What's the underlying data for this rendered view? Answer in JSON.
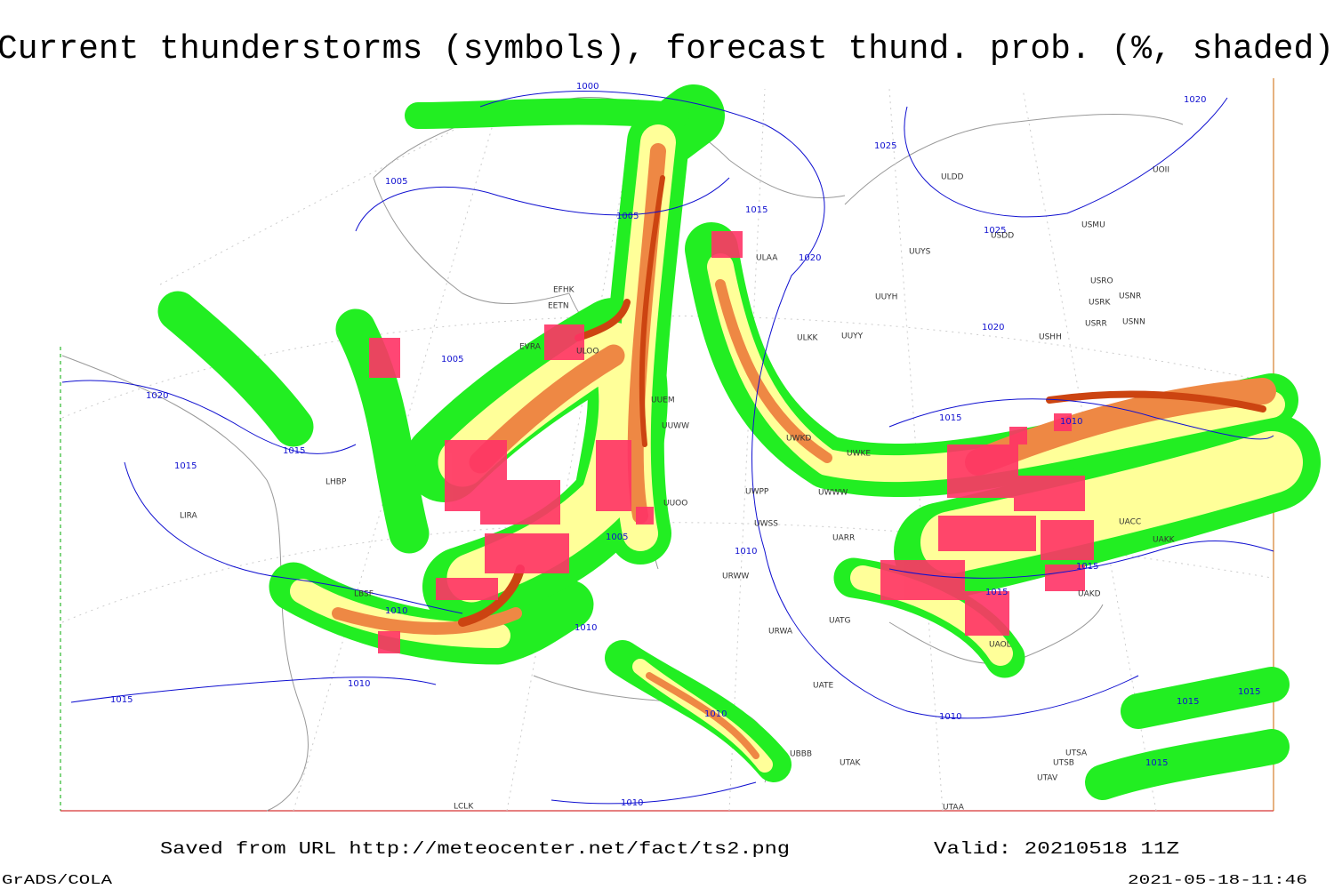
{
  "title": "Current thunderstorms (symbols), forecast thund. prob. (%, shaded)",
  "footer": {
    "source": "Saved from URL http://meteocenter.net/fact/ts2.png",
    "valid": "Valid: 20210518 11Z",
    "software": "GrADS/COLA",
    "timestamp": "2021-05-18-11:46"
  },
  "isobars": [
    1000,
    1005,
    1005,
    1015,
    1020,
    1025,
    1025,
    1020,
    1020,
    1005,
    1020,
    1015,
    1015,
    1015,
    1010,
    1005,
    1010,
    1015,
    1015,
    1010,
    1010,
    1010,
    1015,
    1010,
    1010,
    1010,
    1015,
    1015,
    1015
  ],
  "stations": [
    "ULAA",
    "UUYS",
    "UUYH",
    "UUYY",
    "ULKK",
    "USMU",
    "USDD",
    "ULDD",
    "UOII",
    "USRO",
    "USRK",
    "USNR",
    "USRR",
    "USNN",
    "USHH",
    "UWKE",
    "UWKD",
    "UWWW",
    "UWPP",
    "UWSS",
    "UARR",
    "UUOO",
    "UUEM",
    "UUWW",
    "EFHK",
    "EETN",
    "EVRA",
    "ULOO",
    "LIRA",
    "LHBP",
    "LBSF",
    "URWW",
    "UATG",
    "URWA",
    "UATE",
    "UAOL",
    "UAKD",
    "UACC",
    "UAKK",
    "UTAK",
    "UTAV",
    "UTSB",
    "UTSA",
    "UTAA",
    "UBBB",
    "LCLK"
  ]
}
